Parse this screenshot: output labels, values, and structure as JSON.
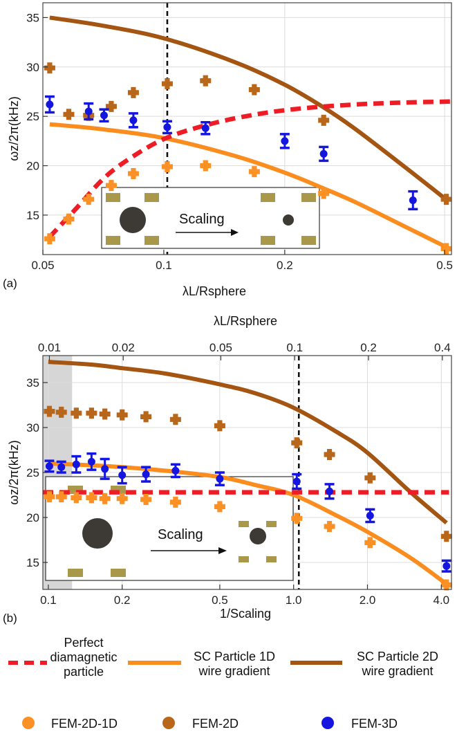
{
  "colors": {
    "ideal": "#ee1c25",
    "sc1d": "#fb8c1e",
    "sc2d": "#a35511",
    "fem2d1d": "#fb9124",
    "fem2d": "#b8661a",
    "fem3d": "#1515e0",
    "grid": "#dcdcdc",
    "shade": "#d6d6d6",
    "pad": "#a9974a",
    "sphere": "#3d3a35"
  },
  "legend": {
    "ideal": "Perfect\ndiamagnetic\nparticle",
    "sc1d": "SC Particle 1D\nwire gradient",
    "sc2d": "SC Particle 2D\nwire gradient",
    "fem2d1d": "FEM-2D-1D",
    "fem2d": "FEM-2D",
    "fem3d": "FEM-3D"
  },
  "chart_data": [
    {
      "panel_label": "(a)",
      "type": "scatter",
      "xscale": "log",
      "xlabel": "λL/Rsphere",
      "ylabel": "ωz/2π(kHz)",
      "xlim": [
        0.05,
        0.52
      ],
      "ylim": [
        11,
        36.5
      ],
      "xticks": [
        0.05,
        0.1,
        0.2,
        0.5
      ],
      "xtick_labels": [
        "0.05",
        "0.1",
        "0.2",
        "0.5"
      ],
      "yticks": [
        15,
        20,
        25,
        30,
        35
      ],
      "grid": true,
      "vline_x": 0.102,
      "inset_text": "Scaling",
      "curves": {
        "ideal": {
          "x": [
            0.052,
            0.06,
            0.07,
            0.08,
            0.1,
            0.13,
            0.17,
            0.22,
            0.3,
            0.4,
            0.52
          ],
          "y": [
            12.8,
            15.5,
            18.5,
            20.4,
            22.7,
            24.2,
            25.2,
            25.8,
            26.2,
            26.4,
            26.5
          ]
        },
        "sc1d": {
          "x": [
            0.052,
            0.07,
            0.1,
            0.15,
            0.2,
            0.25,
            0.3,
            0.4,
            0.52
          ],
          "y": [
            24.2,
            23.7,
            22.8,
            21.0,
            19.3,
            17.7,
            16.3,
            13.8,
            11.5
          ]
        },
        "sc2d": {
          "x": [
            0.052,
            0.07,
            0.1,
            0.15,
            0.2,
            0.25,
            0.3,
            0.4,
            0.5
          ],
          "y": [
            35.0,
            34.2,
            32.9,
            30.5,
            28.2,
            25.9,
            23.7,
            19.8,
            16.7
          ]
        }
      },
      "points": {
        "fem2d1d": {
          "x": [
            0.052,
            0.058,
            0.065,
            0.074,
            0.084,
            0.102,
            0.127,
            0.168,
            0.25,
            0.505
          ],
          "y": [
            12.6,
            14.6,
            16.6,
            18.0,
            19.2,
            19.9,
            20.0,
            19.4,
            17.2,
            11.6
          ]
        },
        "fem2d": {
          "x": [
            0.052,
            0.058,
            0.065,
            0.074,
            0.084,
            0.102,
            0.127,
            0.168,
            0.25,
            0.505
          ],
          "y": [
            29.9,
            25.2,
            25.1,
            26.0,
            27.4,
            28.3,
            28.6,
            27.7,
            24.6,
            16.6
          ]
        },
        "fem3d": {
          "x": [
            0.052,
            0.065,
            0.071,
            0.084,
            0.102,
            0.127,
            0.2,
            0.25,
            0.417
          ],
          "y": [
            26.2,
            25.5,
            25.1,
            24.6,
            23.9,
            23.8,
            22.5,
            21.2,
            16.5
          ],
          "err": [
            0.8,
            0.8,
            0.6,
            0.7,
            0.6,
            0.6,
            0.7,
            0.7,
            0.9
          ]
        }
      }
    },
    {
      "panel_label": "(b)",
      "type": "scatter",
      "xscale": "log",
      "xlabel": "1/Scaling",
      "ylabel": "ωz/2π(kHz)",
      "top_xlabel": "λL/Rsphere",
      "xlim": [
        0.095,
        4.4
      ],
      "ylim": [
        12,
        38
      ],
      "xticks": [
        0.1,
        0.2,
        0.5,
        1.0,
        2.0,
        4.0
      ],
      "xtick_labels": [
        "0.1",
        "0.2",
        "0.5",
        "1.0",
        "2.0",
        "4.0"
      ],
      "top_xticks": [
        0.101,
        0.202,
        0.505,
        1.01,
        2.02,
        4.04
      ],
      "top_xtick_labels": [
        "0.01",
        "0.02",
        "0.05",
        "0.1",
        "0.2",
        "0.4"
      ],
      "yticks": [
        15,
        20,
        25,
        30,
        35
      ],
      "grid": true,
      "vline_x": 1.05,
      "shaded_x": [
        0.095,
        0.125
      ],
      "inset_text": "Scaling",
      "curves": {
        "ideal": {
          "x": [
            0.095,
            4.3
          ],
          "y": [
            22.8,
            22.8
          ]
        },
        "sc1d": {
          "x": [
            0.1,
            0.15,
            0.2,
            0.3,
            0.5,
            0.7,
            1.0,
            1.5,
            2.0,
            3.0,
            4.2
          ],
          "y": [
            26.0,
            25.8,
            25.6,
            25.2,
            24.5,
            23.6,
            22.5,
            20.2,
            18.4,
            15.5,
            12.6
          ]
        },
        "sc2d": {
          "x": [
            0.1,
            0.15,
            0.2,
            0.3,
            0.5,
            0.7,
            1.0,
            1.5,
            2.0,
            3.0,
            4.2
          ],
          "y": [
            37.3,
            37.0,
            36.6,
            36.0,
            34.8,
            33.8,
            32.2,
            29.5,
            27.2,
            22.8,
            19.4
          ]
        }
      },
      "points": {
        "fem2d1d": {
          "x": [
            0.101,
            0.113,
            0.13,
            0.15,
            0.17,
            0.2,
            0.25,
            0.33,
            0.5,
            1.03,
            1.4,
            2.05,
            4.2
          ],
          "y": [
            22.3,
            22.3,
            22.2,
            22.2,
            22.1,
            22.1,
            22.0,
            21.7,
            21.2,
            19.9,
            19.0,
            17.2,
            12.5
          ]
        },
        "fem2d": {
          "x": [
            0.101,
            0.113,
            0.13,
            0.15,
            0.17,
            0.2,
            0.25,
            0.33,
            0.5,
            1.03,
            1.4,
            2.05,
            4.2
          ],
          "y": [
            31.8,
            31.7,
            31.6,
            31.6,
            31.5,
            31.4,
            31.2,
            30.9,
            30.2,
            28.3,
            27.0,
            24.4,
            17.9
          ]
        },
        "fem3d": {
          "x": [
            0.101,
            0.113,
            0.13,
            0.15,
            0.17,
            0.2,
            0.25,
            0.33,
            0.5,
            1.03,
            1.4,
            2.05,
            4.2
          ],
          "y": [
            25.7,
            25.6,
            25.9,
            26.2,
            25.4,
            24.7,
            24.8,
            25.2,
            24.3,
            24.0,
            22.9,
            20.2,
            14.6
          ],
          "err": [
            0.6,
            0.6,
            0.9,
            0.9,
            1.1,
            0.9,
            0.8,
            0.7,
            0.7,
            0.8,
            0.8,
            0.7,
            0.6
          ]
        }
      }
    }
  ]
}
